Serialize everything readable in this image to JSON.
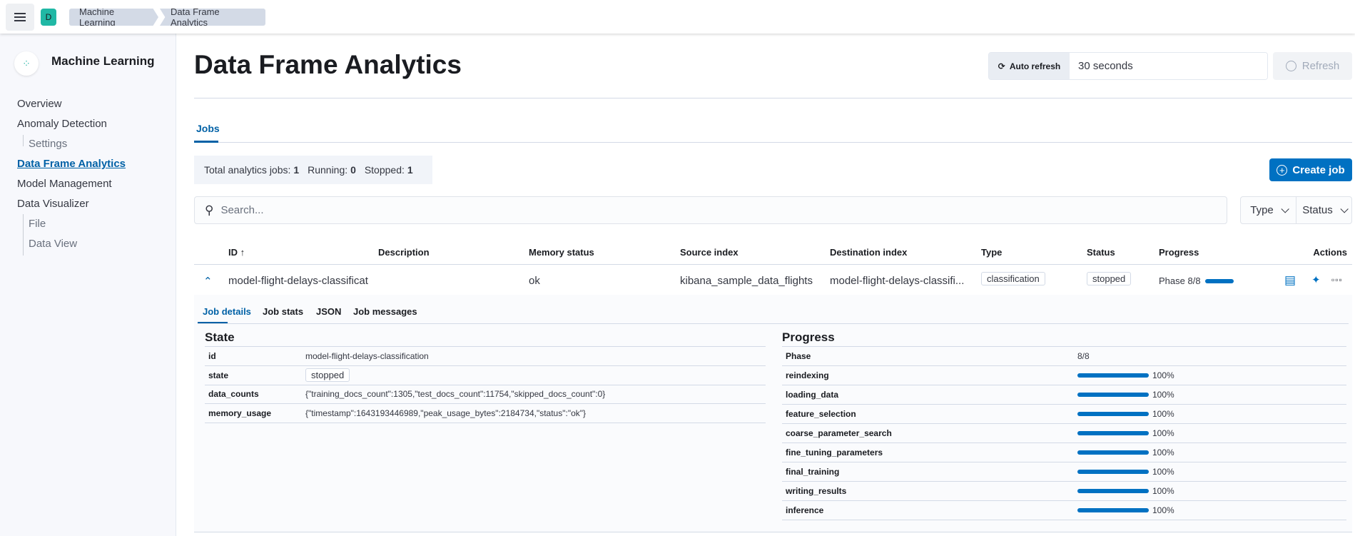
{
  "header": {
    "space_initial": "D",
    "breadcrumbs": [
      "Machine Learning",
      "Data Frame Analytics"
    ]
  },
  "sidebar": {
    "title": "Machine Learning",
    "items": [
      {
        "label": "Overview"
      },
      {
        "label": "Anomaly Detection"
      },
      {
        "label": "Settings"
      },
      {
        "label": "Data Frame Analytics"
      },
      {
        "label": "Model Management"
      },
      {
        "label": "Data Visualizer"
      },
      {
        "label": "File"
      },
      {
        "label": "Data View"
      }
    ]
  },
  "page": {
    "title": "Data Frame Analytics",
    "auto_refresh_label": "Auto refresh",
    "auto_refresh_value": "30 seconds",
    "refresh_label": "Refresh",
    "tab": "Jobs",
    "summary": {
      "total_label": "Total analytics jobs:",
      "total": "1",
      "running_label": "Running:",
      "running": "0",
      "stopped_label": "Stopped:",
      "stopped": "1"
    },
    "create_label": "Create job",
    "search_placeholder": "Search...",
    "filters": [
      "Type",
      "Status"
    ]
  },
  "table": {
    "columns": [
      "ID",
      "Description",
      "Memory status",
      "Source index",
      "Destination index",
      "Type",
      "Status",
      "Progress",
      "Actions"
    ],
    "rows": [
      {
        "id": "model-flight-delays-classificat",
        "description": "",
        "memory_status": "ok",
        "source": "kibana_sample_data_flights",
        "destination": "model-flight-delays-classifi...",
        "type": "classification",
        "status": "stopped",
        "progress_label": "Phase 8/8",
        "progress_pct": 100
      }
    ]
  },
  "details": {
    "tabs": [
      "Job details",
      "Job stats",
      "JSON",
      "Job messages"
    ],
    "state_title": "State",
    "state": [
      {
        "key": "id",
        "value": "model-flight-delays-classification"
      },
      {
        "key": "state",
        "value": "stopped"
      },
      {
        "key": "data_counts",
        "value": "{\"training_docs_count\":1305,\"test_docs_count\":11754,\"skipped_docs_count\":0}"
      },
      {
        "key": "memory_usage",
        "value": "{\"timestamp\":1643193446989,\"peak_usage_bytes\":2184734,\"status\":\"ok\"}"
      }
    ],
    "progress_title": "Progress",
    "phase_label": "Phase",
    "phase_value": "8/8",
    "phases": [
      {
        "name": "reindexing",
        "pct": 100,
        "label": "100%"
      },
      {
        "name": "loading_data",
        "pct": 100,
        "label": "100%"
      },
      {
        "name": "feature_selection",
        "pct": 100,
        "label": "100%"
      },
      {
        "name": "coarse_parameter_search",
        "pct": 100,
        "label": "100%"
      },
      {
        "name": "fine_tuning_parameters",
        "pct": 100,
        "label": "100%"
      },
      {
        "name": "final_training",
        "pct": 100,
        "label": "100%"
      },
      {
        "name": "writing_results",
        "pct": 100,
        "label": "100%"
      },
      {
        "name": "inference",
        "pct": 100,
        "label": "100%"
      }
    ]
  },
  "colors": {
    "accent": "#0071c2",
    "link": "#0061a6",
    "space": "#20b8a5"
  }
}
